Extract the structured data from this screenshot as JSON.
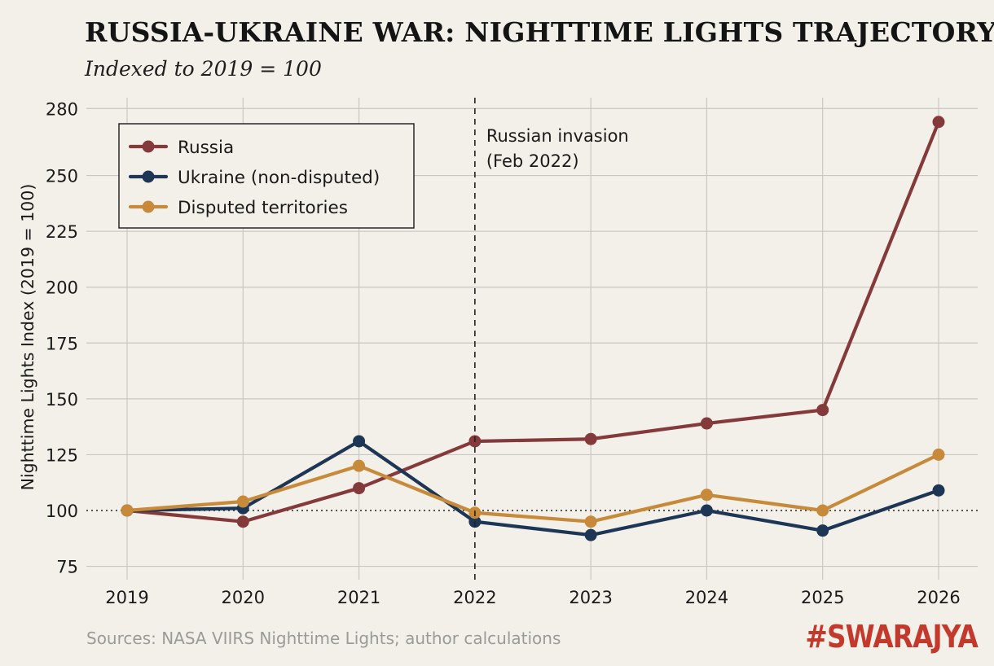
{
  "header": {
    "title": "RUSSIA-UKRAINE WAR: NIGHTTIME LIGHTS TRAJECTORY",
    "subtitle": "Indexed to 2019 = 100"
  },
  "footer": {
    "source": "Sources: NASA VIIRS Nighttime Lights; author calculations",
    "brand": "#SWARAJYA"
  },
  "colors": {
    "background": "#f3f0e9",
    "grid": "#c9c7c1",
    "brand": "#c33a2c"
  },
  "chart_data": {
    "type": "line",
    "title": "RUSSIA-UKRAINE WAR: NIGHTTIME LIGHTS TRAJECTORY",
    "subtitle": "Indexed to 2019 = 100",
    "xlabel": "",
    "ylabel": "Nighttime Lights Index (2019 = 100)",
    "x": [
      "2019",
      "2020",
      "2021",
      "2022",
      "2023",
      "2024",
      "2025",
      "2026"
    ],
    "ylim": [
      75,
      280
    ],
    "yticks": [
      75,
      100,
      125,
      150,
      175,
      200,
      225,
      250,
      280
    ],
    "grid": true,
    "legend_position": "top-left",
    "series": [
      {
        "name": "Russia",
        "color": "#843a3a",
        "values": [
          100,
          95,
          110,
          131,
          132,
          139,
          145,
          274
        ]
      },
      {
        "name": "Ukraine (non-disputed)",
        "color": "#1e3656",
        "values": [
          100,
          101,
          131,
          95,
          89,
          100,
          91,
          109
        ]
      },
      {
        "name": "Disputed territories",
        "color": "#c78a3a",
        "values": [
          100,
          104,
          120,
          99,
          95,
          107,
          100,
          125
        ]
      }
    ],
    "reference_line": {
      "y": 100,
      "style": "dotted"
    },
    "annotations": [
      {
        "x": "2022",
        "lines": [
          "Russian invasion",
          "(Feb 2022)"
        ],
        "style": "dashed-vertical"
      }
    ]
  }
}
